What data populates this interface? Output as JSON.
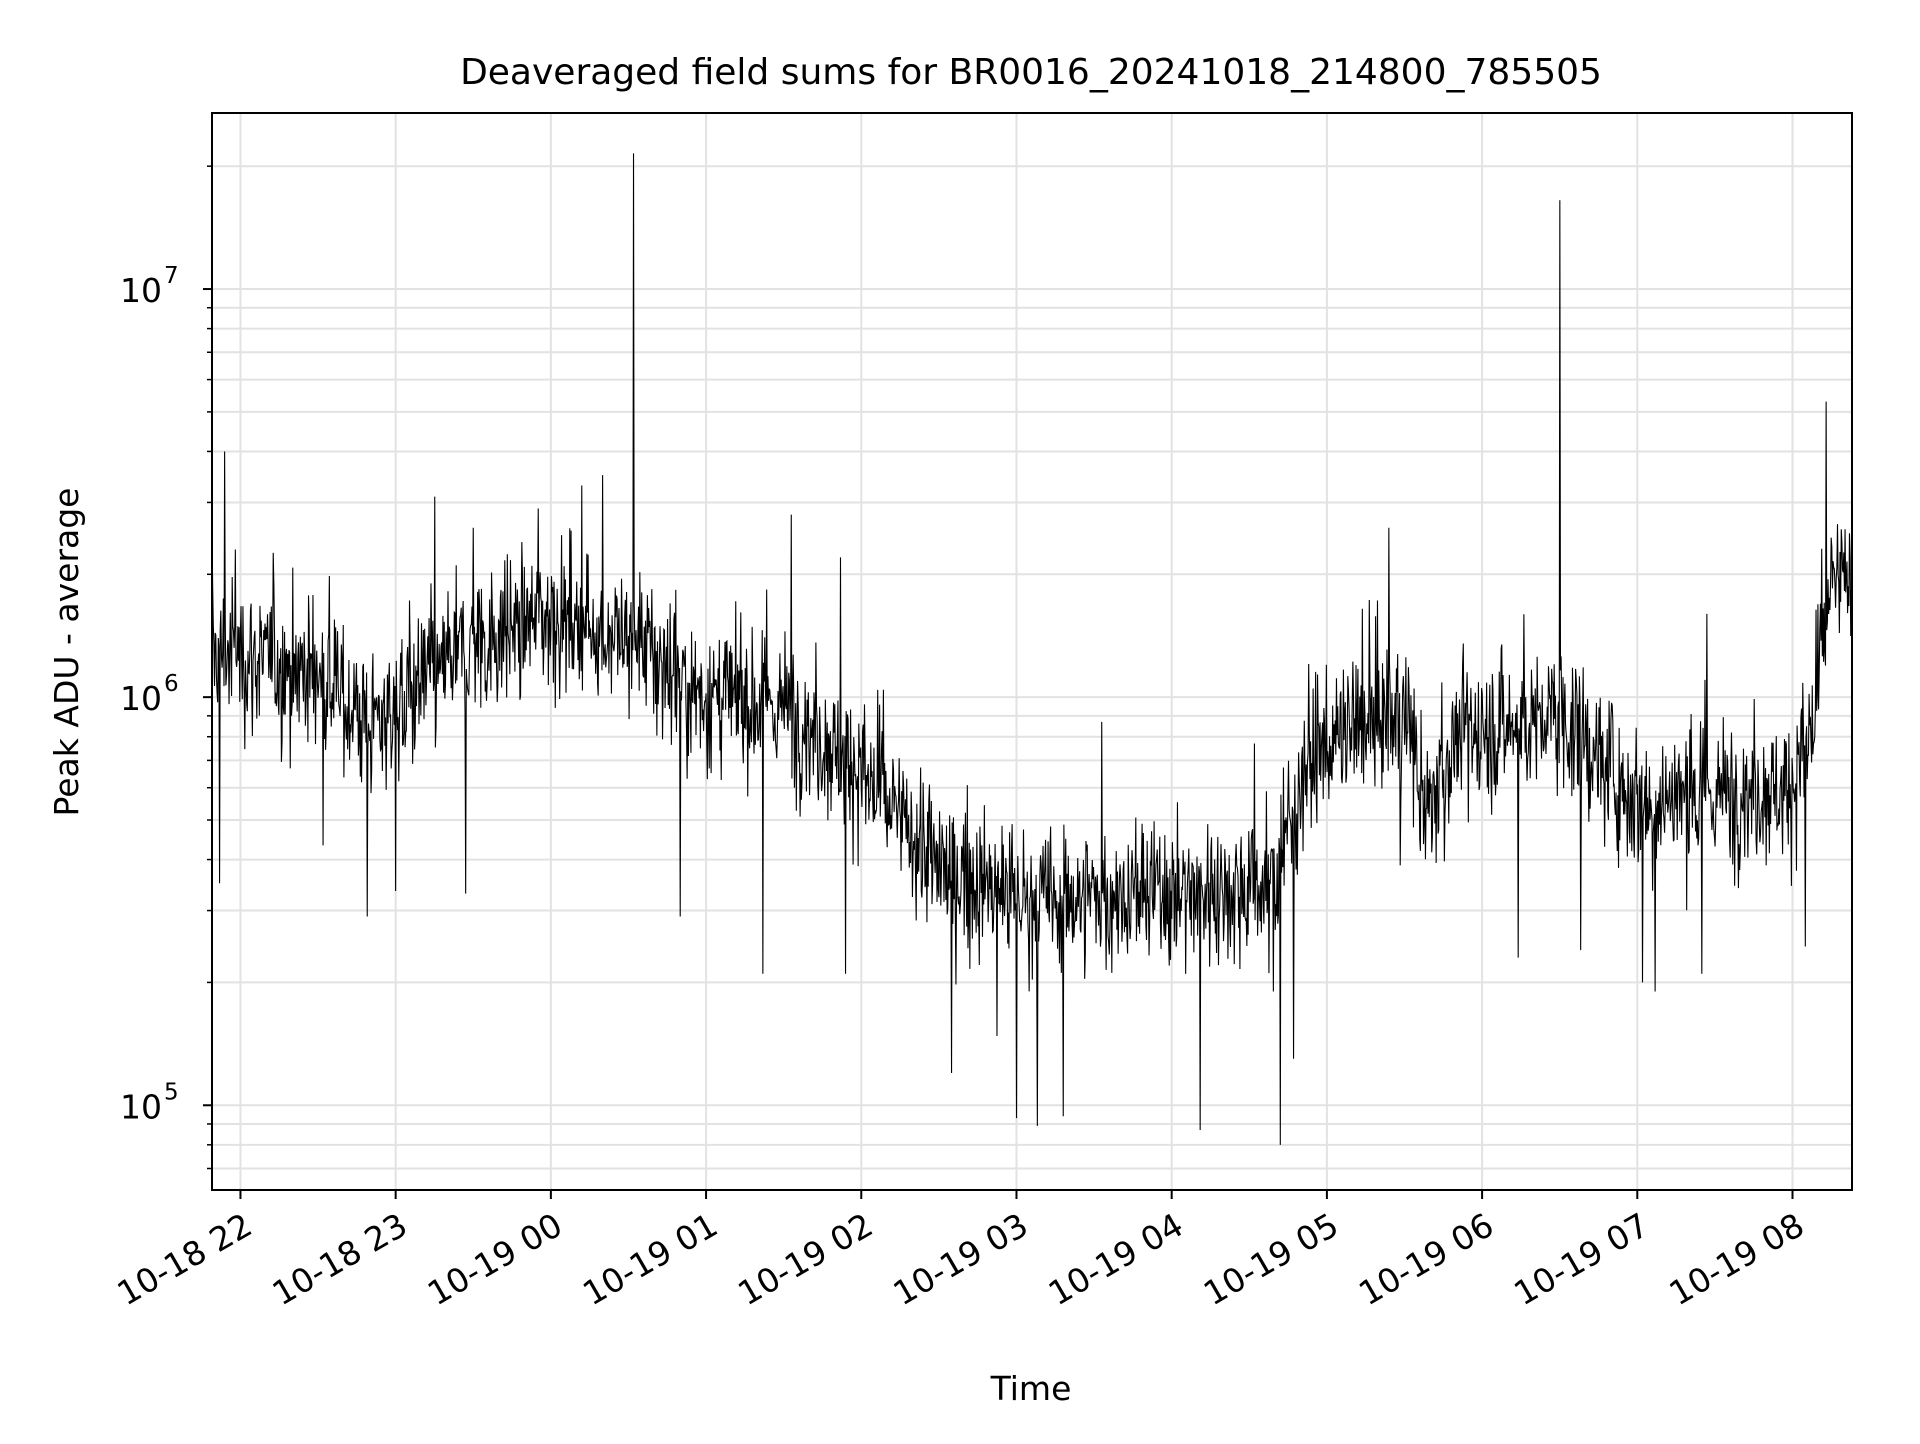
{
  "chart_data": {
    "type": "line",
    "title": "Deaveraged field sums for BR0016_20241018_214800_785505",
    "xlabel": "Time",
    "ylabel": "Peak ADU - average",
    "x_type": "datetime",
    "y_scale": "log",
    "xlim": [
      "2024-10-18T21:49:00",
      "2024-10-19T08:23:00"
    ],
    "ylim": [
      62000,
      27000000
    ],
    "grid": true,
    "grid_minor": true,
    "line_color": "#000000",
    "x_ticks": [
      "2024-10-18T22:00:00",
      "2024-10-18T23:00:00",
      "2024-10-19T00:00:00",
      "2024-10-19T01:00:00",
      "2024-10-19T02:00:00",
      "2024-10-19T03:00:00",
      "2024-10-19T04:00:00",
      "2024-10-19T05:00:00",
      "2024-10-19T06:00:00",
      "2024-10-19T07:00:00",
      "2024-10-19T08:00:00"
    ],
    "x_tick_labels": [
      "10-18 22",
      "10-18 23",
      "10-19 00",
      "10-19 01",
      "10-19 02",
      "10-19 03",
      "10-19 04",
      "10-19 05",
      "10-19 06",
      "10-19 07",
      "10-19 08"
    ],
    "y_major_ticks": [
      100000,
      1000000,
      10000000
    ],
    "y_tick_labels": [
      {
        "base": "10",
        "exp": "5"
      },
      {
        "base": "10",
        "exp": "6"
      },
      {
        "base": "10",
        "exp": "7"
      }
    ],
    "series": [
      {
        "x_start": "2024-10-18T21:49:00",
        "x_end": "2024-10-19T08:23:00",
        "trend": [
          {
            "x": "2024-10-18T21:49:00",
            "y": 1300000
          },
          {
            "x": "2024-10-18T22:30:00",
            "y": 1150000
          },
          {
            "x": "2024-10-18T22:50:00",
            "y": 850000
          },
          {
            "x": "2024-10-18T23:30:00",
            "y": 1350000
          },
          {
            "x": "2024-10-19T00:00:00",
            "y": 1600000
          },
          {
            "x": "2024-10-19T00:30:00",
            "y": 1400000
          },
          {
            "x": "2024-10-19T01:00:00",
            "y": 1000000
          },
          {
            "x": "2024-10-19T01:30:00",
            "y": 950000
          },
          {
            "x": "2024-10-19T02:00:00",
            "y": 650000
          },
          {
            "x": "2024-10-19T02:30:00",
            "y": 380000
          },
          {
            "x": "2024-10-19T03:00:00",
            "y": 320000
          },
          {
            "x": "2024-10-19T04:00:00",
            "y": 330000
          },
          {
            "x": "2024-10-19T04:40:00",
            "y": 350000
          },
          {
            "x": "2024-10-19T04:52:00",
            "y": 700000
          },
          {
            "x": "2024-10-19T05:20:00",
            "y": 900000
          },
          {
            "x": "2024-10-19T05:32:00",
            "y": 850000
          },
          {
            "x": "2024-10-19T05:38:00",
            "y": 500000
          },
          {
            "x": "2024-10-19T05:50:00",
            "y": 800000
          },
          {
            "x": "2024-10-19T06:30:00",
            "y": 900000
          },
          {
            "x": "2024-10-19T07:00:00",
            "y": 560000
          },
          {
            "x": "2024-10-19T07:30:00",
            "y": 580000
          },
          {
            "x": "2024-10-19T08:00:00",
            "y": 600000
          },
          {
            "x": "2024-10-19T08:09:00",
            "y": 900000
          },
          {
            "x": "2024-10-19T08:14:00",
            "y": 1800000
          },
          {
            "x": "2024-10-19T08:23:00",
            "y": 2000000
          }
        ],
        "peaks": [
          {
            "x": "2024-10-18T21:49:00",
            "y": 2500000
          },
          {
            "x": "2024-10-18T21:54:00",
            "y": 4000000
          },
          {
            "x": "2024-10-18T21:58:00",
            "y": 2300000
          },
          {
            "x": "2024-10-18T23:15:00",
            "y": 3100000
          },
          {
            "x": "2024-10-18T23:30:00",
            "y": 2600000
          },
          {
            "x": "2024-10-18T23:55:00",
            "y": 2900000
          },
          {
            "x": "2024-10-19T00:12:00",
            "y": 3300000
          },
          {
            "x": "2024-10-19T00:20:00",
            "y": 3500000
          },
          {
            "x": "2024-10-19T00:32:00",
            "y": 21500000
          },
          {
            "x": "2024-10-19T01:33:00",
            "y": 2800000
          },
          {
            "x": "2024-10-19T01:52:00",
            "y": 2200000
          },
          {
            "x": "2024-10-19T03:33:00",
            "y": 870000
          },
          {
            "x": "2024-10-19T04:32:00",
            "y": 770000
          },
          {
            "x": "2024-10-19T05:24:00",
            "y": 2600000
          },
          {
            "x": "2024-10-19T06:30:00",
            "y": 16500000
          },
          {
            "x": "2024-10-19T07:27:00",
            "y": 1600000
          },
          {
            "x": "2024-10-19T08:13:00",
            "y": 5300000
          }
        ],
        "dips": [
          {
            "x": "2024-10-18T21:52:00",
            "y": 350000
          },
          {
            "x": "2024-10-18T22:49:00",
            "y": 290000
          },
          {
            "x": "2024-10-18T23:00:00",
            "y": 335000
          },
          {
            "x": "2024-10-18T23:27:00",
            "y": 330000
          },
          {
            "x": "2024-10-19T00:50:00",
            "y": 290000
          },
          {
            "x": "2024-10-19T01:22:00",
            "y": 210000
          },
          {
            "x": "2024-10-19T01:54:00",
            "y": 210000
          },
          {
            "x": "2024-10-19T02:35:00",
            "y": 120000
          },
          {
            "x": "2024-10-19T03:00:00",
            "y": 93000
          },
          {
            "x": "2024-10-19T03:08:00",
            "y": 89000
          },
          {
            "x": "2024-10-19T03:18:00",
            "y": 94000
          },
          {
            "x": "2024-10-19T04:11:00",
            "y": 87000
          },
          {
            "x": "2024-10-19T04:42:00",
            "y": 80000
          },
          {
            "x": "2024-10-19T04:47:00",
            "y": 130000
          },
          {
            "x": "2024-10-19T06:14:00",
            "y": 230000
          },
          {
            "x": "2024-10-19T06:38:00",
            "y": 240000
          },
          {
            "x": "2024-10-19T07:02:00",
            "y": 200000
          },
          {
            "x": "2024-10-19T07:07:00",
            "y": 190000
          },
          {
            "x": "2024-10-19T07:25:00",
            "y": 210000
          },
          {
            "x": "2024-10-19T08:05:00",
            "y": 245000
          }
        ]
      }
    ]
  }
}
